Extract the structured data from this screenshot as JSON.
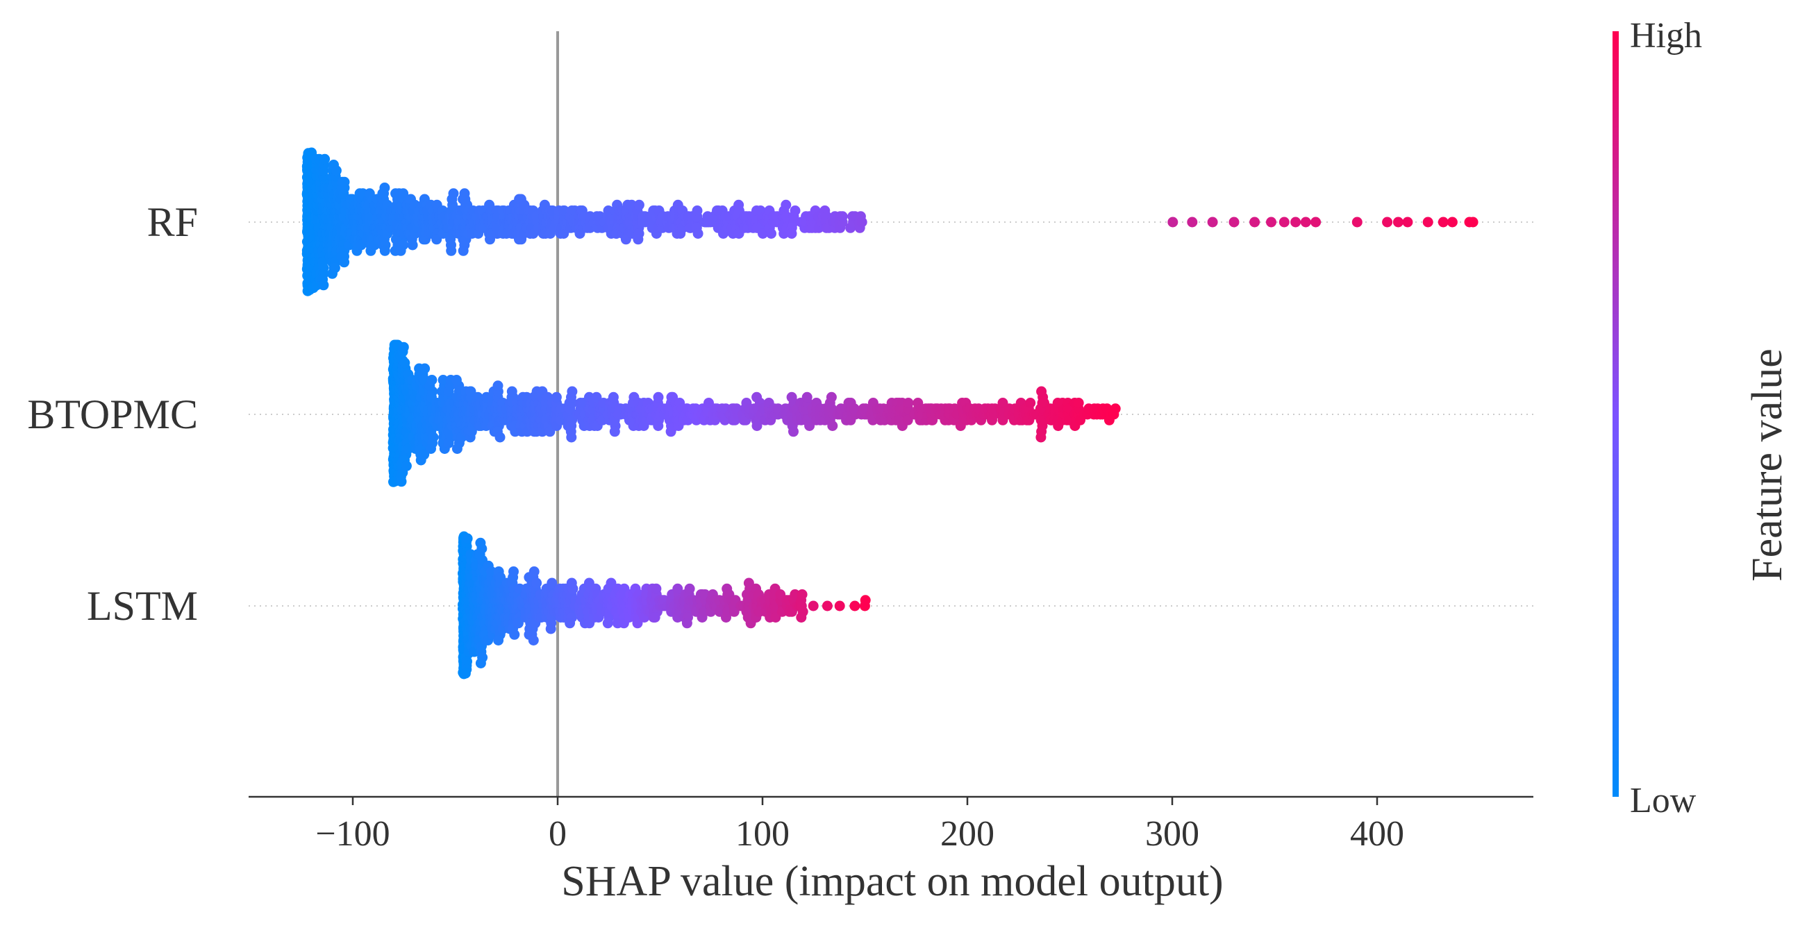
{
  "chart_data": {
    "type": "scatter",
    "subtype": "shap-beeswarm-summary",
    "xlabel": "SHAP value (impact on model output)",
    "xlim": [
      -150,
      475
    ],
    "xticks": [
      -100,
      0,
      100,
      200,
      300,
      400
    ],
    "xtick_labels": [
      "−100",
      "0",
      "100",
      "200",
      "300",
      "400"
    ],
    "zero_line": 0,
    "features": [
      {
        "name": "RF",
        "min": -122,
        "max": 447,
        "peak": -110,
        "dense_end": 150,
        "n": 1100,
        "sparse_points": [
          300,
          310,
          320,
          330,
          340,
          348,
          355,
          360,
          365,
          370,
          390,
          405,
          410,
          415,
          425,
          432,
          437,
          445
        ]
      },
      {
        "name": "BTOPMC",
        "min": -80,
        "max": 272,
        "peak": -70,
        "dense_end": 272,
        "n": 1100,
        "sparse_points": []
      },
      {
        "name": "LSTM",
        "min": -46,
        "max": 150,
        "peak": -38,
        "dense_end": 120,
        "n": 750,
        "sparse_points": [
          125,
          132,
          138,
          145,
          150
        ]
      }
    ],
    "colorbar": {
      "label": "Feature value",
      "high_label": "High",
      "low_label": "Low",
      "low_color": "#008bfb",
      "mid_color": "#7c52ff",
      "high_color": "#ff0051"
    }
  }
}
